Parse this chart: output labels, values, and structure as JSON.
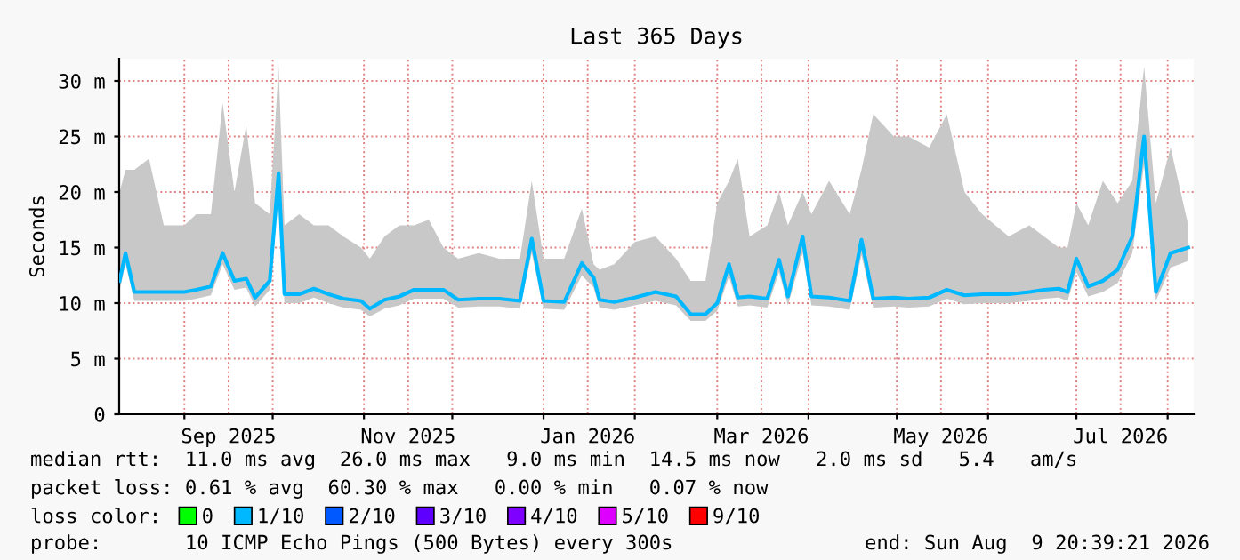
{
  "chart_data": {
    "type": "line",
    "title": "Last 365 Days",
    "ylabel": "Seconds",
    "xlim": [
      "2025-08-09T20:39",
      "2026-08-09T20:39"
    ],
    "xticks": [
      {
        "value": "2025-09-01",
        "label": null
      },
      {
        "value": "2025-09-16",
        "label": "Sep 2025"
      },
      {
        "value": "2025-10-01",
        "label": null
      },
      {
        "value": "2025-11-01",
        "label": null
      },
      {
        "value": "2025-11-16",
        "label": "Nov 2025"
      },
      {
        "value": "2025-12-01",
        "label": null
      },
      {
        "value": "2026-01-01",
        "label": null
      },
      {
        "value": "2026-01-16",
        "label": "Jan 2026"
      },
      {
        "value": "2026-02-01",
        "label": null
      },
      {
        "value": "2026-03-01",
        "label": null
      },
      {
        "value": "2026-03-16",
        "label": "Mar 2026"
      },
      {
        "value": "2026-04-01",
        "label": null
      },
      {
        "value": "2026-05-01",
        "label": null
      },
      {
        "value": "2026-05-16",
        "label": "May 2026"
      },
      {
        "value": "2026-06-01",
        "label": null
      },
      {
        "value": "2026-07-01",
        "label": null
      },
      {
        "value": "2026-07-16",
        "label": "Jul 2026"
      },
      {
        "value": "2026-08-01",
        "label": null
      }
    ],
    "ylim": [
      0,
      32
    ],
    "yticks": [
      0,
      {
        "value": 5,
        "label": "5 m"
      },
      {
        "value": 10,
        "label": "10 m"
      },
      {
        "value": 15,
        "label": "15 m"
      },
      {
        "value": 20,
        "label": "20 m"
      },
      {
        "value": 25,
        "label": "25 m"
      },
      {
        "value": 30,
        "label": "30 m"
      }
    ],
    "grid": true,
    "legend": "bottom",
    "x": [
      "2025-08-10",
      "2025-08-12",
      "2025-08-15",
      "2025-08-20",
      "2025-08-25",
      "2025-09-01",
      "2025-09-05",
      "2025-09-10",
      "2025-09-14",
      "2025-09-18",
      "2025-09-22",
      "2025-09-25",
      "2025-09-30",
      "2025-10-03",
      "2025-10-05",
      "2025-10-10",
      "2025-10-15",
      "2025-10-20",
      "2025-10-25",
      "2025-10-31",
      "2025-11-03",
      "2025-11-08",
      "2025-11-13",
      "2025-11-18",
      "2025-11-23",
      "2025-11-28",
      "2025-12-03",
      "2025-12-10",
      "2025-12-17",
      "2025-12-24",
      "2025-12-28",
      "2026-01-01",
      "2026-01-08",
      "2026-01-14",
      "2026-01-18",
      "2026-01-20",
      "2026-01-25",
      "2026-02-01",
      "2026-02-08",
      "2026-02-15",
      "2026-02-20",
      "2026-02-25",
      "2026-03-01",
      "2026-03-05",
      "2026-03-08",
      "2026-03-12",
      "2026-03-18",
      "2026-03-22",
      "2026-03-25",
      "2026-03-30",
      "2026-04-02",
      "2026-04-08",
      "2026-04-15",
      "2026-04-19",
      "2026-04-23",
      "2026-04-30",
      "2026-05-05",
      "2026-05-12",
      "2026-05-18",
      "2026-05-24",
      "2026-05-30",
      "2026-06-08",
      "2026-06-15",
      "2026-06-20",
      "2026-06-25",
      "2026-06-28",
      "2026-07-01",
      "2026-07-05",
      "2026-07-10",
      "2026-07-15",
      "2026-07-20",
      "2026-07-24",
      "2026-07-28",
      "2026-08-02",
      "2026-08-08"
    ],
    "series": [
      {
        "color": "#00b8ff",
        "values": [
          12,
          14.5,
          11,
          11,
          11,
          11,
          11.2,
          11.5,
          14.5,
          12,
          12.2,
          10.5,
          12,
          21.7,
          10.8,
          10.8,
          11.3,
          10.8,
          10.4,
          10.2,
          9.5,
          10.3,
          10.6,
          11.2,
          11.2,
          11.2,
          10.3,
          10.4,
          10.4,
          10.2,
          15.8,
          10.2,
          10.1,
          13.6,
          12.3,
          10.3,
          10.1,
          10.5,
          11,
          10.6,
          9,
          9,
          10,
          13.5,
          10.5,
          10.6,
          10.4,
          13.9,
          10.6,
          16,
          10.6,
          10.5,
          10.2,
          15.7,
          10.4,
          10.5,
          10.4,
          10.5,
          11.2,
          10.7,
          10.8,
          10.8,
          11,
          11.2,
          11.3,
          11,
          14,
          11.5,
          12,
          13,
          16,
          25,
          11,
          14.5,
          15
        ],
        "lower": [
          11.2,
          13.5,
          10.2,
          10.2,
          10.2,
          10.2,
          10.4,
          10.7,
          13.5,
          11.2,
          11.4,
          9.7,
          11.2,
          19.5,
          10,
          10,
          10.5,
          10,
          9.6,
          9.4,
          8.8,
          9.5,
          9.8,
          10.4,
          10.4,
          10.4,
          9.6,
          9.7,
          9.7,
          9.5,
          14.5,
          9.5,
          9.4,
          12.5,
          11.4,
          9.6,
          9.4,
          9.8,
          10.2,
          9.8,
          8.4,
          8.4,
          9.3,
          12.4,
          9.7,
          9.8,
          9.6,
          12.8,
          9.8,
          14.5,
          9.8,
          9.7,
          9.4,
          14.3,
          9.6,
          9.7,
          9.6,
          9.7,
          10.4,
          9.9,
          10,
          10,
          10.2,
          10.4,
          10.5,
          10.2,
          12.8,
          10.6,
          11,
          11.8,
          14.5,
          22.5,
          10.2,
          13.2,
          13.8
        ],
        "upper": [
          20,
          22,
          22,
          23,
          17,
          17,
          18,
          18,
          28,
          20,
          26,
          19,
          18,
          31.3,
          17,
          18,
          17,
          17,
          16,
          15,
          14,
          16,
          17,
          17,
          17.5,
          15,
          14,
          14.5,
          14,
          14,
          21,
          14,
          14,
          18.5,
          13.5,
          13,
          13.5,
          15.5,
          16,
          14,
          12,
          12,
          19,
          21,
          23,
          16,
          17,
          20,
          17,
          20,
          18,
          21,
          18,
          22,
          27,
          25,
          25,
          24,
          27,
          20,
          18,
          16,
          17,
          16,
          15,
          15,
          19,
          17,
          21,
          19,
          21,
          31.3,
          19,
          24,
          17
        ]
      },
      {
        "name": "0",
        "color": "#00ff00",
        "values": [
          null,
          null,
          null,
          null,
          null,
          null,
          null,
          null,
          null,
          null,
          null,
          null,
          null,
          null,
          null,
          null,
          null,
          null,
          null,
          null,
          null,
          null,
          null,
          null,
          null,
          null,
          null,
          null,
          null,
          null,
          null,
          null,
          null,
          null,
          null,
          null,
          null,
          null,
          null,
          null,
          null,
          null,
          null,
          null,
          null,
          null,
          null,
          null,
          null,
          null,
          null,
          null,
          null,
          null,
          null,
          null,
          null,
          null,
          null,
          null,
          null,
          null,
          null,
          null,
          null,
          null,
          null,
          null,
          null,
          null,
          null,
          null,
          null,
          null,
          null
        ]
      },
      {
        "name": "1/10",
        "color": "#00b8ff",
        "values": [
          null,
          null,
          null,
          null,
          null,
          null,
          null,
          null,
          null,
          null,
          null,
          null,
          null,
          null,
          null,
          null,
          null,
          null,
          null,
          null,
          null,
          null,
          null,
          null,
          null,
          null,
          null,
          null,
          null,
          null,
          null,
          null,
          null,
          null,
          null,
          null,
          null,
          null,
          null,
          null,
          null,
          null,
          null,
          null,
          null,
          null,
          null,
          null,
          null,
          null,
          null,
          null,
          null,
          null,
          null,
          null,
          null,
          null,
          null,
          null,
          null,
          null,
          null,
          null,
          null,
          null,
          null,
          null,
          null,
          null,
          null,
          null,
          null,
          null,
          null
        ]
      },
      {
        "name": "2/10",
        "color": "#0059ff",
        "values": [
          null,
          null,
          null,
          null,
          null,
          null,
          null,
          null,
          null,
          null,
          null,
          null,
          null,
          null,
          null,
          null,
          null,
          null,
          null,
          null,
          null,
          null,
          null,
          null,
          null,
          null,
          null,
          null,
          null,
          null,
          null,
          null,
          null,
          null,
          null,
          null,
          null,
          null,
          null,
          null,
          null,
          null,
          null,
          null,
          null,
          null,
          null,
          null,
          null,
          null,
          null,
          null,
          null,
          null,
          null,
          null,
          null,
          null,
          null,
          null,
          null,
          null,
          null,
          null,
          null,
          null,
          null,
          null,
          null,
          null,
          null,
          null,
          null,
          null,
          null
        ]
      },
      {
        "name": "3/10",
        "color": "#5e00ff",
        "values": [
          null,
          null,
          null,
          null,
          null,
          null,
          null,
          null,
          null,
          null,
          null,
          null,
          null,
          null,
          null,
          null,
          null,
          null,
          null,
          null,
          null,
          null,
          null,
          null,
          null,
          null,
          null,
          null,
          null,
          null,
          null,
          null,
          null,
          null,
          null,
          null,
          null,
          null,
          null,
          null,
          null,
          null,
          null,
          null,
          null,
          null,
          null,
          null,
          null,
          null,
          null,
          null,
          null,
          null,
          null,
          null,
          null,
          null,
          null,
          null,
          null,
          null,
          null,
          null,
          null,
          null,
          null,
          null,
          null,
          null,
          null,
          null,
          null,
          null,
          null
        ]
      },
      {
        "name": "4/10",
        "color": "#7e00ff",
        "values": [
          null,
          null,
          null,
          null,
          null,
          null,
          null,
          null,
          null,
          null,
          null,
          null,
          null,
          null,
          null,
          null,
          null,
          null,
          null,
          null,
          null,
          null,
          null,
          null,
          null,
          null,
          null,
          null,
          null,
          null,
          null,
          null,
          null,
          null,
          null,
          null,
          null,
          null,
          null,
          null,
          null,
          null,
          null,
          null,
          null,
          null,
          null,
          null,
          null,
          null,
          null,
          null,
          null,
          null,
          null,
          null,
          null,
          null,
          null,
          null,
          null,
          null,
          null,
          null,
          null,
          null,
          null,
          null,
          null,
          null,
          null,
          null,
          null,
          null,
          null
        ]
      },
      {
        "name": "5/10",
        "color": "#dd00ff",
        "values": [
          null,
          null,
          null,
          null,
          null,
          null,
          null,
          null,
          null,
          null,
          null,
          null,
          null,
          null,
          null,
          null,
          null,
          null,
          null,
          null,
          null,
          null,
          null,
          null,
          null,
          null,
          null,
          null,
          null,
          null,
          null,
          null,
          null,
          null,
          null,
          null,
          null,
          null,
          null,
          null,
          null,
          null,
          null,
          null,
          null,
          null,
          null,
          null,
          null,
          null,
          null,
          null,
          null,
          null,
          null,
          null,
          null,
          null,
          null,
          null,
          null,
          null,
          null,
          null,
          null,
          null,
          null,
          null,
          null,
          null,
          null,
          null,
          null,
          null,
          null
        ]
      },
      {
        "name": "9/10",
        "color": "#ff0000",
        "values": [
          null,
          null,
          null,
          null,
          null,
          null,
          null,
          null,
          null,
          null,
          null,
          null,
          null,
          null,
          null,
          null,
          null,
          null,
          null,
          null,
          null,
          null,
          null,
          null,
          null,
          null,
          null,
          null,
          null,
          null,
          null,
          null,
          null,
          null,
          null,
          null,
          null,
          null,
          null,
          null,
          null,
          null,
          null,
          null,
          null,
          null,
          null,
          null,
          null,
          null,
          null,
          null,
          null,
          null,
          null,
          null,
          null,
          null,
          null,
          null,
          null,
          null,
          null,
          null,
          null,
          null,
          null,
          null,
          null,
          null,
          null,
          null,
          null,
          null,
          null
        ]
      }
    ],
    "annotations": [
      "median rtt:  11.0 ms avg  26.0 ms max   9.0 ms min  14.5 ms now   2.0 ms sd   5.4   am/s",
      "packet loss: 0.61 % avg  60.30 % max   0.00 % min   0.07 % now",
      "loss color:",
      "probe:       10 ICMP Echo Pings (500 Bytes) every 300s",
      "end: Sun Aug  9 20:39:21 2026"
    ]
  }
}
